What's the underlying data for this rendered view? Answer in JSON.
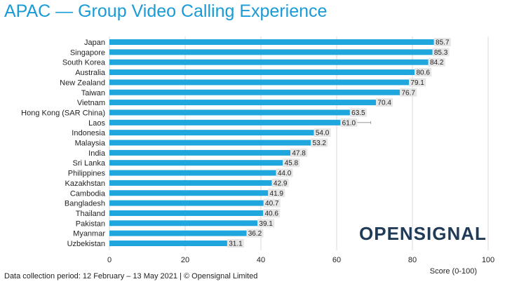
{
  "title": "APAC — Group Video Calling Experience",
  "footer": "Data collection period: 12 February – 13 May 2021  |  © Opensignal Limited",
  "logo": "OPENSIGNAL",
  "colors": {
    "bar": "#1fa6dc",
    "title": "#1a9bd6",
    "grid": "#d9d9d9",
    "label_bg": "#e6e6e6",
    "logo": "#1f3b57"
  },
  "chart_data": {
    "type": "bar",
    "orientation": "horizontal",
    "categories": [
      "Japan",
      "Singapore",
      "South Korea",
      "Australia",
      "New Zealand",
      "Taiwan",
      "Vietnam",
      "Hong Kong (SAR China)",
      "Laos",
      "Indonesia",
      "Malaysia",
      "India",
      "Sri Lanka",
      "Philippines",
      "Kazakhstan",
      "Cambodia",
      "Bangladesh",
      "Thailand",
      "Pakistan",
      "Myanmar",
      "Uzbekistan"
    ],
    "values": [
      85.7,
      85.3,
      84.2,
      80.6,
      79.1,
      76.7,
      70.4,
      63.5,
      61.0,
      54.0,
      53.2,
      47.8,
      45.8,
      44.0,
      42.9,
      41.9,
      40.7,
      40.6,
      39.1,
      36.2,
      31.1
    ],
    "value_labels": [
      "85.7",
      "85.3",
      "84.2",
      "80.6",
      "79.1",
      "76.7",
      "70.4",
      "63.5",
      "61.0",
      "54.0",
      "53.2",
      "47.8",
      "45.8",
      "44.0",
      "42.9",
      "41.9",
      "40.7",
      "40.6",
      "39.1",
      "36.2",
      "31.1"
    ],
    "error_high": [
      null,
      null,
      null,
      null,
      null,
      null,
      null,
      null,
      69.0,
      null,
      56.5,
      null,
      null,
      null,
      null,
      null,
      null,
      null,
      null,
      null,
      null
    ],
    "xlim": [
      0,
      100
    ],
    "xticks": [
      0,
      20,
      40,
      60,
      80,
      100
    ],
    "xtick_labels": [
      "0",
      "20",
      "40",
      "60",
      "80",
      "100"
    ],
    "xlabel": "Score (0-100)",
    "grid": true
  }
}
